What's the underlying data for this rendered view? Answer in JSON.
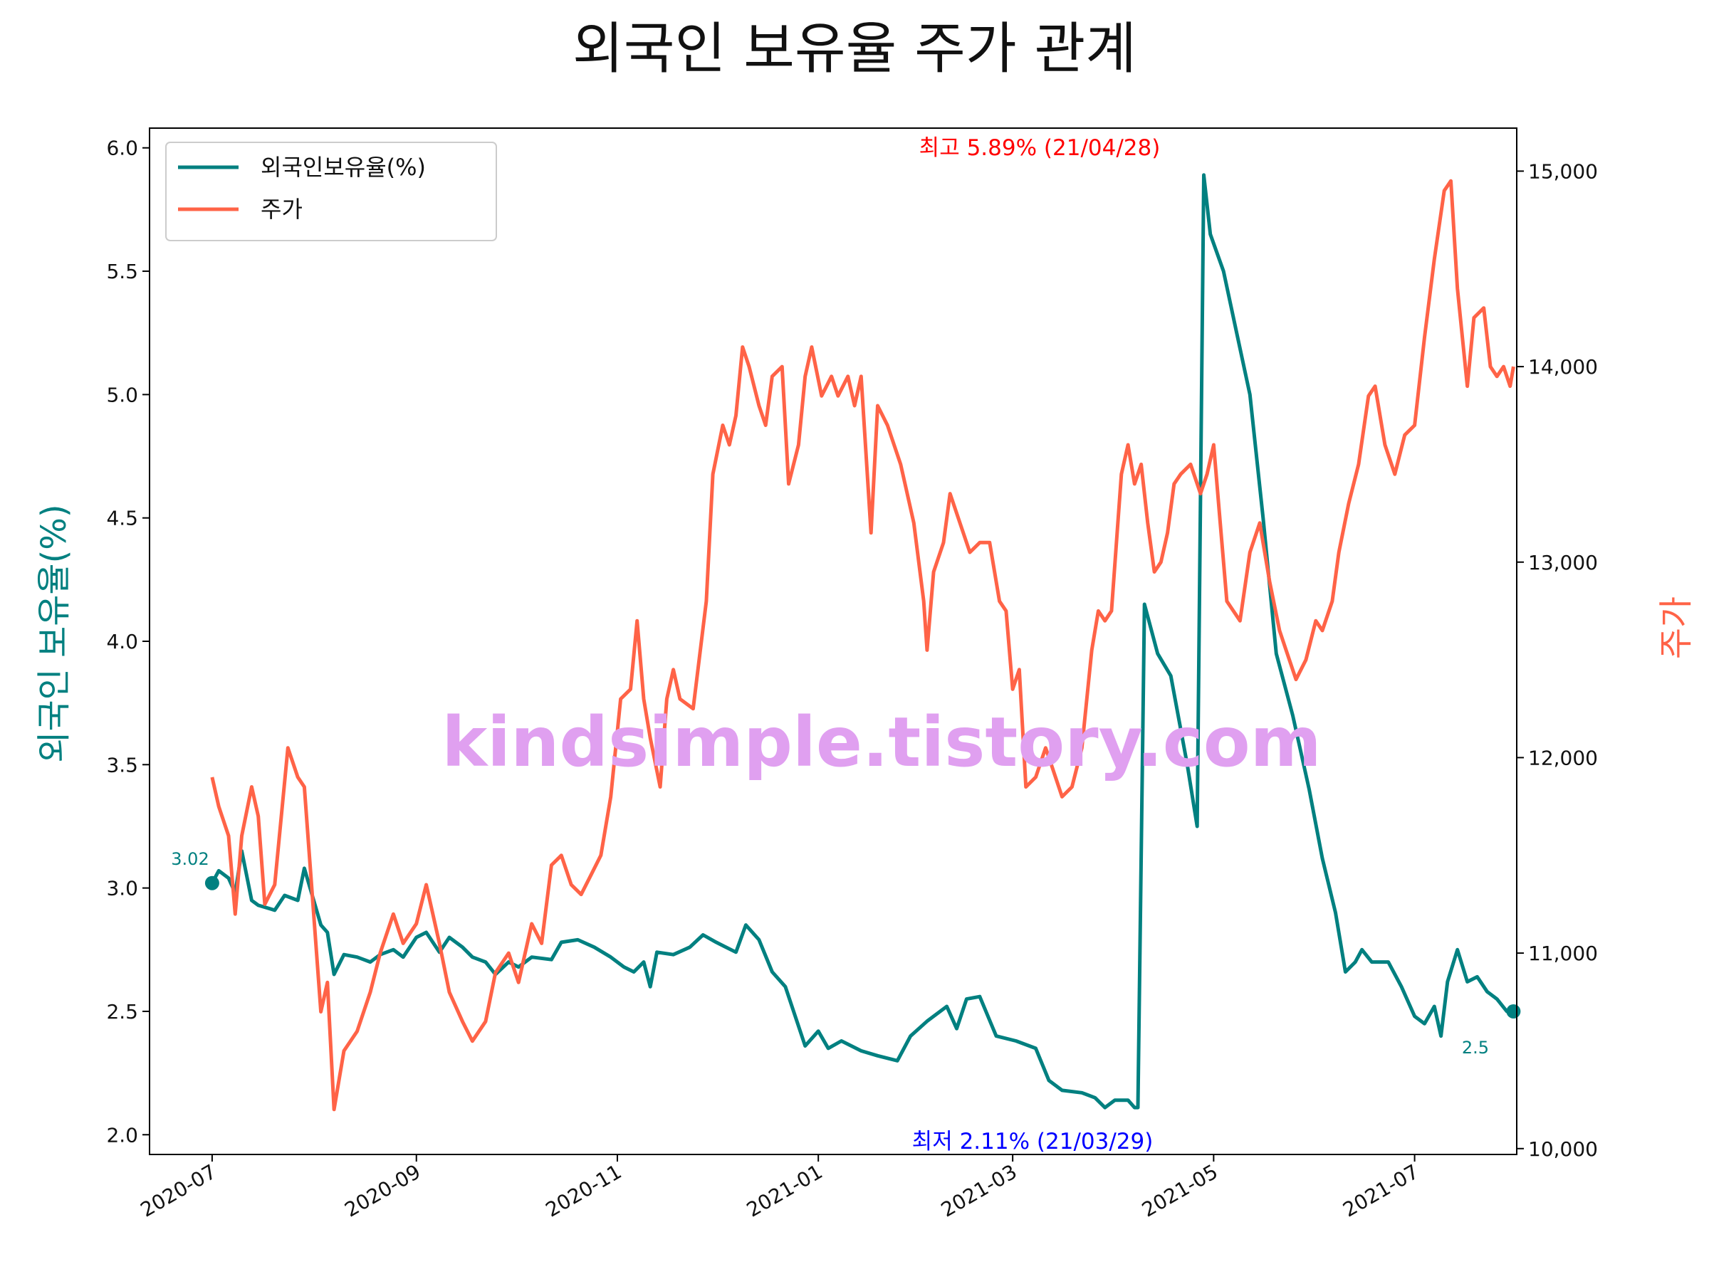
{
  "chart_data": {
    "type": "line",
    "title": "외국인 보유율 주가 관계",
    "ylabel_left": "외국인 보유율(%)",
    "ylabel_right": "주가",
    "xlim": [
      "2020-06-12",
      "2021-08-01"
    ],
    "ylim_left": [
      1.92,
      6.08
    ],
    "ylim_right": [
      9970,
      15220
    ],
    "x_ticks": [
      "2020-07",
      "2020-09",
      "2020-11",
      "2021-01",
      "2021-03",
      "2021-05",
      "2021-07"
    ],
    "x_tick_dates": [
      "2020-07-01",
      "2020-09-01",
      "2020-11-01",
      "2021-01-01",
      "2021-03-01",
      "2021-05-01",
      "2021-07-01"
    ],
    "y_ticks_left": [
      "2.0",
      "2.5",
      "3.0",
      "3.5",
      "4.0",
      "4.5",
      "5.0",
      "5.5",
      "6.0"
    ],
    "y_ticks_right": [
      "10,000",
      "11,000",
      "12,000",
      "13,000",
      "14,000",
      "15,000"
    ],
    "legend_position": "upper-left",
    "watermark": "kindsimple.tistory.com",
    "colors": {
      "ratio": "#008080",
      "price": "#ff6347",
      "max": "#ff0000",
      "min": "#0000ff",
      "watermark": "#e0a0f0"
    },
    "series": [
      {
        "name": "외국인보유율(%)",
        "axis": "left",
        "points": [
          [
            "2020-07-01",
            3.02
          ],
          [
            "2020-07-03",
            3.07
          ],
          [
            "2020-07-06",
            3.04
          ],
          [
            "2020-07-08",
            2.98
          ],
          [
            "2020-07-10",
            3.15
          ],
          [
            "2020-07-13",
            2.95
          ],
          [
            "2020-07-15",
            2.93
          ],
          [
            "2020-07-20",
            2.91
          ],
          [
            "2020-07-23",
            2.97
          ],
          [
            "2020-07-27",
            2.95
          ],
          [
            "2020-07-29",
            3.08
          ],
          [
            "2020-08-03",
            2.85
          ],
          [
            "2020-08-05",
            2.82
          ],
          [
            "2020-08-07",
            2.65
          ],
          [
            "2020-08-10",
            2.73
          ],
          [
            "2020-08-14",
            2.72
          ],
          [
            "2020-08-18",
            2.7
          ],
          [
            "2020-08-21",
            2.73
          ],
          [
            "2020-08-25",
            2.75
          ],
          [
            "2020-08-28",
            2.72
          ],
          [
            "2020-09-01",
            2.8
          ],
          [
            "2020-09-04",
            2.82
          ],
          [
            "2020-09-08",
            2.74
          ],
          [
            "2020-09-11",
            2.8
          ],
          [
            "2020-09-15",
            2.76
          ],
          [
            "2020-09-18",
            2.72
          ],
          [
            "2020-09-22",
            2.7
          ],
          [
            "2020-09-25",
            2.65
          ],
          [
            "2020-09-29",
            2.7
          ],
          [
            "2020-10-02",
            2.68
          ],
          [
            "2020-10-06",
            2.72
          ],
          [
            "2020-10-12",
            2.71
          ],
          [
            "2020-10-15",
            2.78
          ],
          [
            "2020-10-20",
            2.79
          ],
          [
            "2020-10-25",
            2.76
          ],
          [
            "2020-10-30",
            2.72
          ],
          [
            "2020-11-03",
            2.68
          ],
          [
            "2020-11-06",
            2.66
          ],
          [
            "2020-11-09",
            2.7
          ],
          [
            "2020-11-11",
            2.6
          ],
          [
            "2020-11-13",
            2.74
          ],
          [
            "2020-11-18",
            2.73
          ],
          [
            "2020-11-23",
            2.76
          ],
          [
            "2020-11-27",
            2.81
          ],
          [
            "2020-12-01",
            2.78
          ],
          [
            "2020-12-07",
            2.74
          ],
          [
            "2020-12-10",
            2.85
          ],
          [
            "2020-12-14",
            2.79
          ],
          [
            "2020-12-18",
            2.66
          ],
          [
            "2020-12-22",
            2.6
          ],
          [
            "2020-12-28",
            2.36
          ],
          [
            "2021-01-01",
            2.42
          ],
          [
            "2021-01-04",
            2.35
          ],
          [
            "2021-01-08",
            2.38
          ],
          [
            "2021-01-14",
            2.34
          ],
          [
            "2021-01-19",
            2.32
          ],
          [
            "2021-01-25",
            2.3
          ],
          [
            "2021-01-29",
            2.4
          ],
          [
            "2021-02-03",
            2.46
          ],
          [
            "2021-02-09",
            2.52
          ],
          [
            "2021-02-12",
            2.43
          ],
          [
            "2021-02-15",
            2.55
          ],
          [
            "2021-02-19",
            2.56
          ],
          [
            "2021-02-24",
            2.4
          ],
          [
            "2021-03-02",
            2.38
          ],
          [
            "2021-03-08",
            2.35
          ],
          [
            "2021-03-12",
            2.22
          ],
          [
            "2021-03-16",
            2.18
          ],
          [
            "2021-03-22",
            2.17
          ],
          [
            "2021-03-26",
            2.15
          ],
          [
            "2021-03-29",
            2.11
          ],
          [
            "2021-04-01",
            2.14
          ],
          [
            "2021-04-05",
            2.14
          ],
          [
            "2021-04-07",
            2.11
          ],
          [
            "2021-04-08",
            2.11
          ],
          [
            "2021-04-10",
            4.15
          ],
          [
            "2021-04-14",
            3.95
          ],
          [
            "2021-04-18",
            3.86
          ],
          [
            "2021-04-23",
            3.5
          ],
          [
            "2021-04-26",
            3.25
          ],
          [
            "2021-04-28",
            5.89
          ],
          [
            "2021-04-30",
            5.65
          ],
          [
            "2021-05-04",
            5.5
          ],
          [
            "2021-05-08",
            5.25
          ],
          [
            "2021-05-12",
            5.0
          ],
          [
            "2021-05-16",
            4.5
          ],
          [
            "2021-05-20",
            3.95
          ],
          [
            "2021-05-25",
            3.7
          ],
          [
            "2021-05-30",
            3.4
          ],
          [
            "2021-06-03",
            3.12
          ],
          [
            "2021-06-07",
            2.9
          ],
          [
            "2021-06-10",
            2.66
          ],
          [
            "2021-06-13",
            2.7
          ],
          [
            "2021-06-15",
            2.75
          ],
          [
            "2021-06-18",
            2.7
          ],
          [
            "2021-06-23",
            2.7
          ],
          [
            "2021-06-27",
            2.6
          ],
          [
            "2021-07-01",
            2.48
          ],
          [
            "2021-07-04",
            2.45
          ],
          [
            "2021-07-07",
            2.52
          ],
          [
            "2021-07-09",
            2.4
          ],
          [
            "2021-07-11",
            2.62
          ],
          [
            "2021-07-14",
            2.75
          ],
          [
            "2021-07-17",
            2.62
          ],
          [
            "2021-07-20",
            2.64
          ],
          [
            "2021-07-23",
            2.58
          ],
          [
            "2021-07-26",
            2.55
          ],
          [
            "2021-07-29",
            2.5
          ],
          [
            "2021-07-31",
            2.5
          ]
        ]
      },
      {
        "name": "주가",
        "axis": "right",
        "points": [
          [
            "2020-07-01",
            11900
          ],
          [
            "2020-07-03",
            11750
          ],
          [
            "2020-07-06",
            11600
          ],
          [
            "2020-07-08",
            11200
          ],
          [
            "2020-07-10",
            11600
          ],
          [
            "2020-07-13",
            11850
          ],
          [
            "2020-07-15",
            11700
          ],
          [
            "2020-07-17",
            11250
          ],
          [
            "2020-07-20",
            11350
          ],
          [
            "2020-07-24",
            12050
          ],
          [
            "2020-07-27",
            11900
          ],
          [
            "2020-07-29",
            11850
          ],
          [
            "2020-08-03",
            10700
          ],
          [
            "2020-08-05",
            10850
          ],
          [
            "2020-08-07",
            10200
          ],
          [
            "2020-08-10",
            10500
          ],
          [
            "2020-08-14",
            10600
          ],
          [
            "2020-08-18",
            10800
          ],
          [
            "2020-08-21",
            11000
          ],
          [
            "2020-08-25",
            11200
          ],
          [
            "2020-08-28",
            11050
          ],
          [
            "2020-09-01",
            11150
          ],
          [
            "2020-09-04",
            11350
          ],
          [
            "2020-09-08",
            11050
          ],
          [
            "2020-09-11",
            10800
          ],
          [
            "2020-09-15",
            10650
          ],
          [
            "2020-09-18",
            10550
          ],
          [
            "2020-09-22",
            10650
          ],
          [
            "2020-09-25",
            10900
          ],
          [
            "2020-09-29",
            11000
          ],
          [
            "2020-10-02",
            10850
          ],
          [
            "2020-10-06",
            11150
          ],
          [
            "2020-10-09",
            11050
          ],
          [
            "2020-10-12",
            11450
          ],
          [
            "2020-10-15",
            11500
          ],
          [
            "2020-10-18",
            11350
          ],
          [
            "2020-10-21",
            11300
          ],
          [
            "2020-10-24",
            11400
          ],
          [
            "2020-10-27",
            11500
          ],
          [
            "2020-10-30",
            11800
          ],
          [
            "2020-11-02",
            12300
          ],
          [
            "2020-11-05",
            12350
          ],
          [
            "2020-11-07",
            12700
          ],
          [
            "2020-11-09",
            12300
          ],
          [
            "2020-11-11",
            12100
          ],
          [
            "2020-11-14",
            11850
          ],
          [
            "2020-11-16",
            12300
          ],
          [
            "2020-11-18",
            12450
          ],
          [
            "2020-11-20",
            12300
          ],
          [
            "2020-11-24",
            12250
          ],
          [
            "2020-11-28",
            12800
          ],
          [
            "2020-11-30",
            13450
          ],
          [
            "2020-12-03",
            13700
          ],
          [
            "2020-12-05",
            13600
          ],
          [
            "2020-12-07",
            13750
          ],
          [
            "2020-12-09",
            14100
          ],
          [
            "2020-12-11",
            14000
          ],
          [
            "2020-12-14",
            13800
          ],
          [
            "2020-12-16",
            13700
          ],
          [
            "2020-12-18",
            13950
          ],
          [
            "2020-12-21",
            14000
          ],
          [
            "2020-12-23",
            13400
          ],
          [
            "2020-12-26",
            13600
          ],
          [
            "2020-12-28",
            13950
          ],
          [
            "2020-12-30",
            14100
          ],
          [
            "2021-01-02",
            13850
          ],
          [
            "2021-01-05",
            13950
          ],
          [
            "2021-01-07",
            13850
          ],
          [
            "2021-01-10",
            13950
          ],
          [
            "2021-01-12",
            13800
          ],
          [
            "2021-01-14",
            13950
          ],
          [
            "2021-01-17",
            13150
          ],
          [
            "2021-01-19",
            13800
          ],
          [
            "2021-01-22",
            13700
          ],
          [
            "2021-01-26",
            13500
          ],
          [
            "2021-01-30",
            13200
          ],
          [
            "2021-02-02",
            12800
          ],
          [
            "2021-02-03",
            12550
          ],
          [
            "2021-02-05",
            12950
          ],
          [
            "2021-02-08",
            13100
          ],
          [
            "2021-02-10",
            13350
          ],
          [
            "2021-02-13",
            13200
          ],
          [
            "2021-02-16",
            13050
          ],
          [
            "2021-02-19",
            13100
          ],
          [
            "2021-02-22",
            13100
          ],
          [
            "2021-02-25",
            12800
          ],
          [
            "2021-02-27",
            12750
          ],
          [
            "2021-03-01",
            12350
          ],
          [
            "2021-03-03",
            12450
          ],
          [
            "2021-03-05",
            11850
          ],
          [
            "2021-03-08",
            11900
          ],
          [
            "2021-03-11",
            12050
          ],
          [
            "2021-03-13",
            11950
          ],
          [
            "2021-03-16",
            11800
          ],
          [
            "2021-03-19",
            11850
          ],
          [
            "2021-03-22",
            12050
          ],
          [
            "2021-03-25",
            12550
          ],
          [
            "2021-03-27",
            12750
          ],
          [
            "2021-03-29",
            12700
          ],
          [
            "2021-03-31",
            12750
          ],
          [
            "2021-04-03",
            13450
          ],
          [
            "2021-04-05",
            13600
          ],
          [
            "2021-04-07",
            13400
          ],
          [
            "2021-04-09",
            13500
          ],
          [
            "2021-04-11",
            13200
          ],
          [
            "2021-04-13",
            12950
          ],
          [
            "2021-04-15",
            13000
          ],
          [
            "2021-04-17",
            13150
          ],
          [
            "2021-04-19",
            13400
          ],
          [
            "2021-04-21",
            13450
          ],
          [
            "2021-04-24",
            13500
          ],
          [
            "2021-04-27",
            13350
          ],
          [
            "2021-04-29",
            13450
          ],
          [
            "2021-05-01",
            13600
          ],
          [
            "2021-05-03",
            13200
          ],
          [
            "2021-05-05",
            12800
          ],
          [
            "2021-05-07",
            12750
          ],
          [
            "2021-05-09",
            12700
          ],
          [
            "2021-05-12",
            13050
          ],
          [
            "2021-05-15",
            13200
          ],
          [
            "2021-05-18",
            12900
          ],
          [
            "2021-05-21",
            12650
          ],
          [
            "2021-05-23",
            12550
          ],
          [
            "2021-05-26",
            12400
          ],
          [
            "2021-05-29",
            12500
          ],
          [
            "2021-06-01",
            12700
          ],
          [
            "2021-06-03",
            12650
          ],
          [
            "2021-06-06",
            12800
          ],
          [
            "2021-06-08",
            13050
          ],
          [
            "2021-06-11",
            13300
          ],
          [
            "2021-06-14",
            13500
          ],
          [
            "2021-06-17",
            13850
          ],
          [
            "2021-06-19",
            13900
          ],
          [
            "2021-06-22",
            13600
          ],
          [
            "2021-06-25",
            13450
          ],
          [
            "2021-06-28",
            13650
          ],
          [
            "2021-07-01",
            13700
          ],
          [
            "2021-07-04",
            14150
          ],
          [
            "2021-07-07",
            14550
          ],
          [
            "2021-07-10",
            14900
          ],
          [
            "2021-07-12",
            14950
          ],
          [
            "2021-07-14",
            14400
          ],
          [
            "2021-07-17",
            13900
          ],
          [
            "2021-07-19",
            14250
          ],
          [
            "2021-07-22",
            14300
          ],
          [
            "2021-07-24",
            14000
          ],
          [
            "2021-07-26",
            13950
          ],
          [
            "2021-07-28",
            14000
          ],
          [
            "2021-07-30",
            13900
          ],
          [
            "2021-07-31",
            14000
          ]
        ]
      }
    ],
    "annotations": {
      "start": {
        "date": "2020-07-01",
        "value": 3.02,
        "label": "3.02"
      },
      "end": {
        "date": "2021-07-31",
        "value": 2.5,
        "label": "2.5"
      },
      "max": {
        "date": "2021-04-28",
        "value": 5.89,
        "label": "최고 5.89% (21/04/28)"
      },
      "min": {
        "date": "2021-03-29",
        "value": 2.11,
        "label": "최저 2.11% (21/03/29)"
      }
    }
  }
}
